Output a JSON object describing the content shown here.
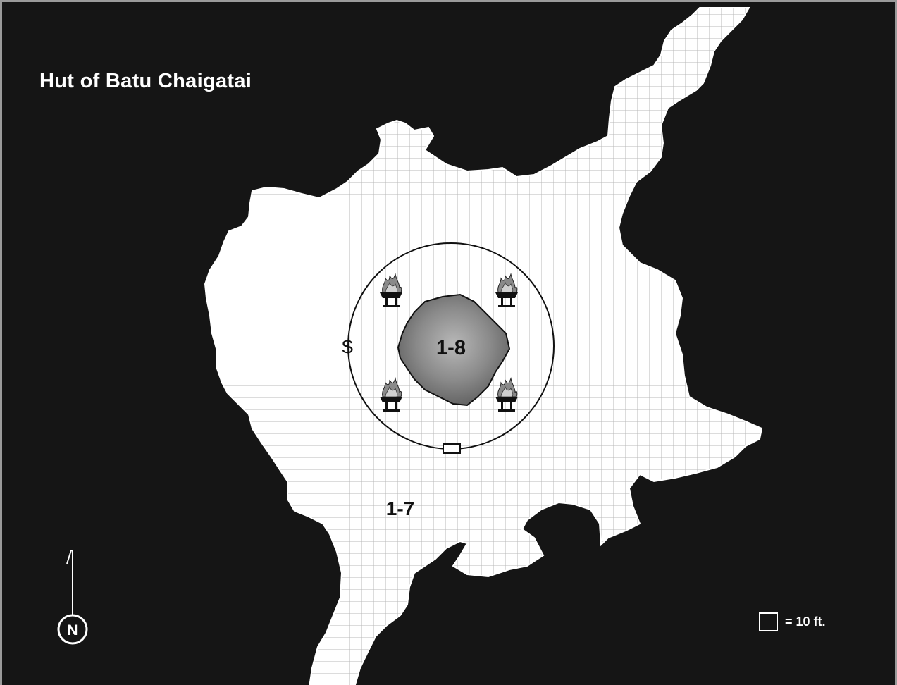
{
  "title": "Hut of Batu Chaigatai",
  "rooms": {
    "outer_room": "1-7",
    "inner_room": "1-8"
  },
  "secret_door_marker": "S",
  "compass": {
    "letter": "N"
  },
  "scale": {
    "text": "= 10 ft."
  },
  "colors": {
    "rock": "#151515",
    "floor": "#ffffff",
    "grid": "#b9b9b9",
    "frame": "#9a9a9a"
  },
  "icons": {
    "braziers": [
      "brazier-icon",
      "brazier-icon",
      "brazier-icon",
      "brazier-icon"
    ],
    "door": "door-icon",
    "boulder": "boulder-icon"
  }
}
